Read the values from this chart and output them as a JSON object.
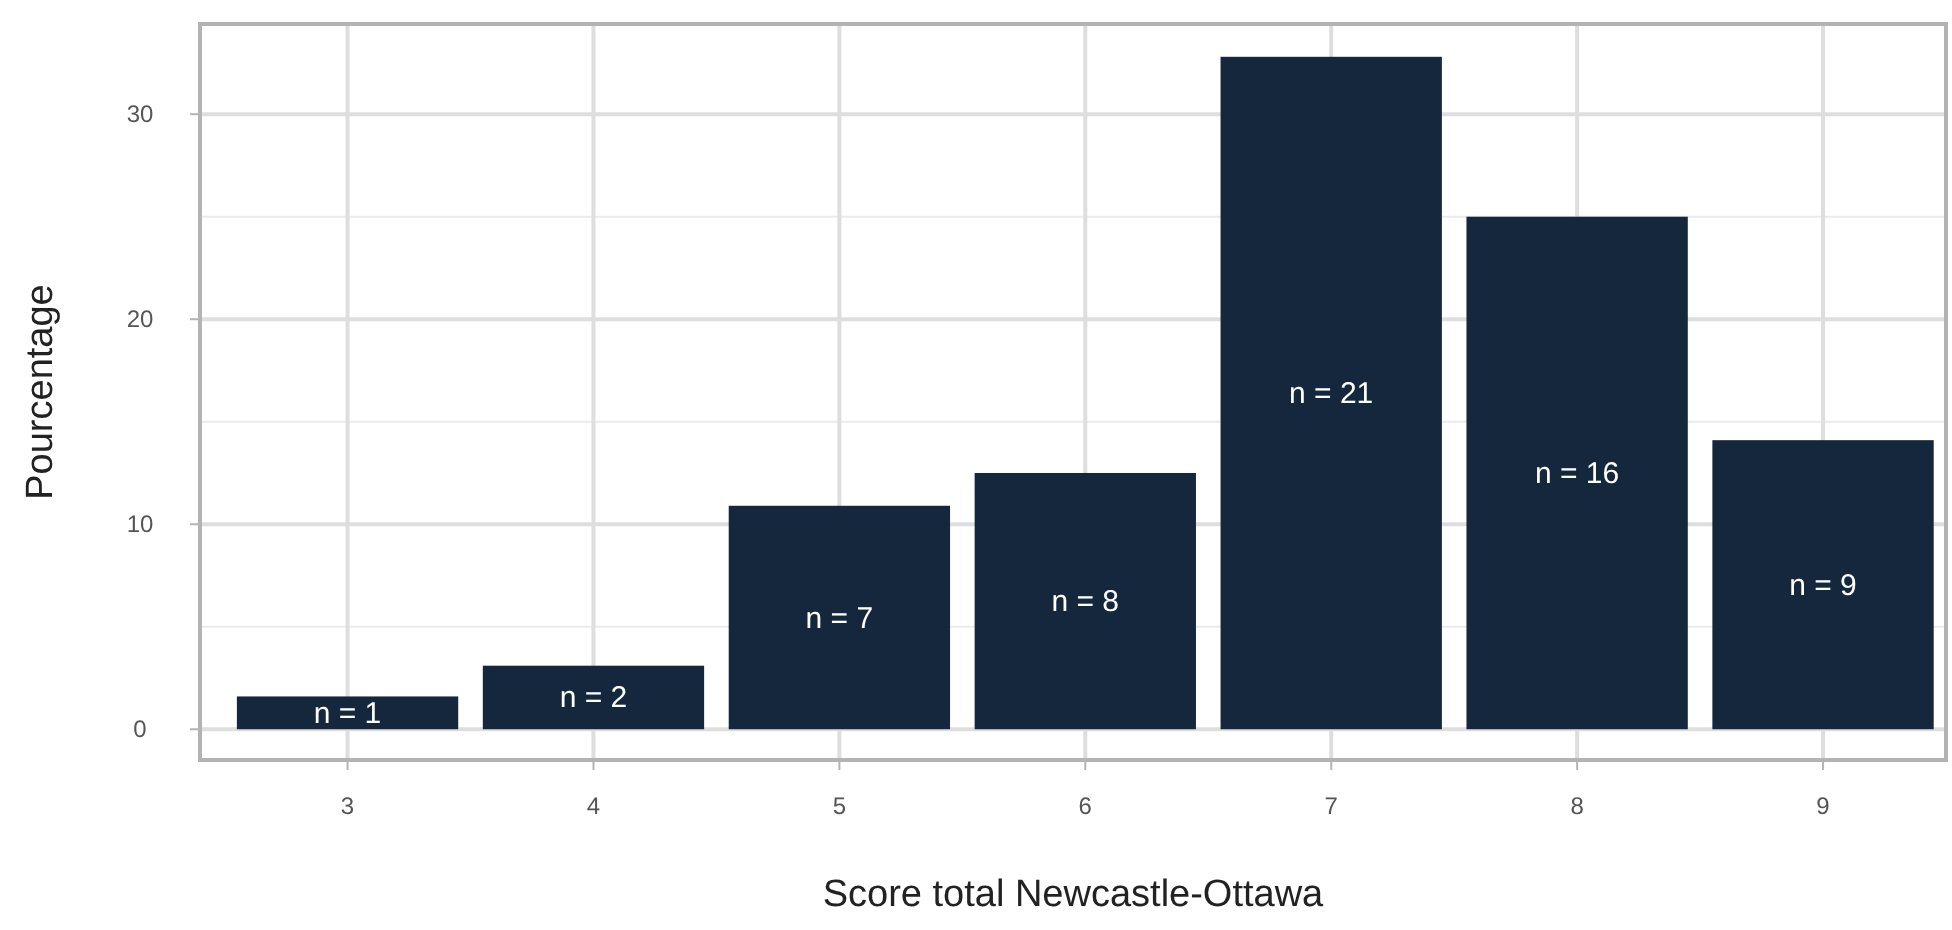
{
  "chart_data": {
    "type": "bar",
    "xlabel": "Score total Newcastle-Ottawa",
    "ylabel": "Pourcentage",
    "x": [
      3,
      4,
      5,
      6,
      7,
      8,
      9
    ],
    "values": [
      1.6,
      3.1,
      10.9,
      12.5,
      32.8,
      25,
      14.1
    ],
    "annotations": [
      "n = 1",
      "n = 2",
      "n = 7",
      "n = 8",
      "n = 21",
      "n = 16",
      "n = 9"
    ],
    "color": "#14273d",
    "xlim": [
      2.4,
      9.5
    ],
    "xticks": [
      3,
      4,
      5,
      6,
      7,
      8,
      9
    ],
    "ylim": [
      -1.5,
      34.4
    ],
    "yticks": [
      0,
      10,
      20,
      30
    ],
    "grid": true
  }
}
